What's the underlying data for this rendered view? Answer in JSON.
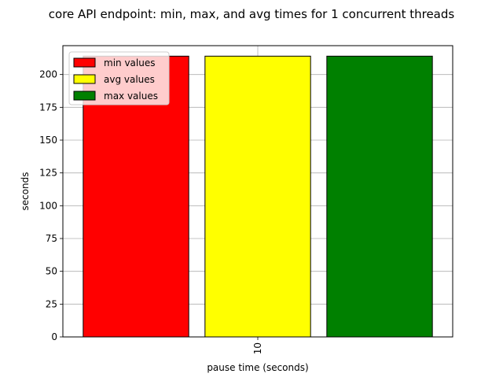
{
  "chart_data": {
    "type": "bar",
    "title": "core API endpoint: min, max, and avg times for 1 concurrent threads",
    "xlabel": "pause time (seconds)",
    "ylabel": "seconds",
    "categories": [
      "10"
    ],
    "series": [
      {
        "name": "min values",
        "values": [
          214
        ],
        "color": "#ff0000"
      },
      {
        "name": "avg values",
        "values": [
          214
        ],
        "color": "#ffff00"
      },
      {
        "name": "max values",
        "values": [
          214
        ],
        "color": "#008000"
      }
    ],
    "ylim": [
      0,
      222
    ],
    "yticks": [
      0,
      25,
      50,
      75,
      100,
      125,
      150,
      175,
      200
    ],
    "grid": true,
    "grid_color": "#b0b0b0",
    "legend_position": "top-left"
  }
}
